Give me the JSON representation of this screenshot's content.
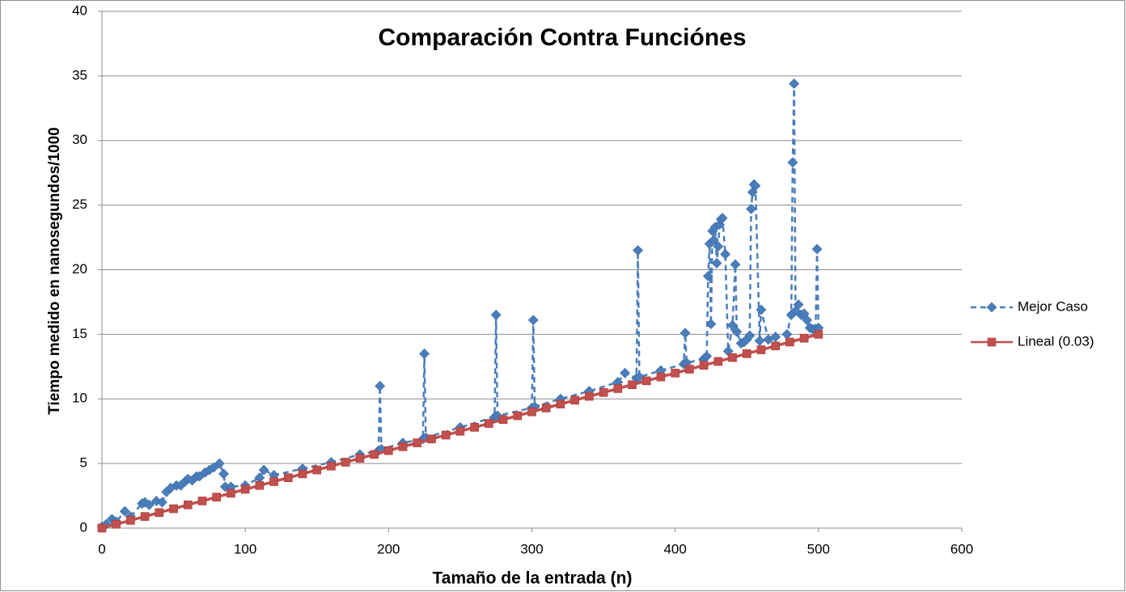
{
  "chart_data": {
    "type": "line",
    "title": "Comparación Contra Funciónes",
    "xlabel": "Tamaño de la entrada (n)",
    "ylabel": "Tiempo medido en nanosegundos/1000",
    "xlim": [
      0,
      600
    ],
    "xticks": [
      0,
      100,
      200,
      300,
      400,
      500,
      600
    ],
    "ylim": [
      0,
      40
    ],
    "yticks": [
      0,
      5,
      10,
      15,
      20,
      25,
      30,
      35,
      40
    ],
    "grid": true,
    "legend": "right",
    "series": [
      {
        "name": "Mejor Caso",
        "color": "#4a7ebb",
        "marker": "diamond",
        "dashed": true,
        "x": [
          0,
          3,
          7,
          10,
          16,
          20,
          28,
          30,
          33,
          38,
          42,
          45,
          48,
          52,
          55,
          58,
          60,
          63,
          66,
          68,
          72,
          75,
          78,
          82,
          85,
          86,
          90,
          100,
          110,
          113,
          120,
          140,
          160,
          180,
          193,
          194,
          195,
          210,
          224,
          225,
          226,
          250,
          274,
          275,
          276,
          300,
          301,
          302,
          320,
          340,
          360,
          365,
          373,
          374,
          375,
          390,
          406,
          407,
          408,
          420,
          422,
          423,
          424,
          425,
          426,
          427,
          428,
          429,
          430,
          431,
          432,
          433,
          435,
          437,
          440,
          442,
          443,
          446,
          448,
          450,
          452,
          453,
          454,
          455,
          456,
          459,
          460,
          465,
          470,
          478,
          481,
          482,
          483,
          484,
          486,
          488,
          490,
          492,
          494,
          496,
          498,
          499,
          500
        ],
        "values": [
          0.1,
          0.3,
          0.7,
          0.5,
          1.3,
          0.9,
          1.9,
          2.0,
          1.8,
          2.1,
          2.0,
          2.8,
          3.1,
          3.3,
          3.3,
          3.6,
          3.8,
          3.7,
          4.0,
          4.0,
          4.3,
          4.5,
          4.7,
          5.0,
          4.2,
          3.2,
          3.2,
          3.3,
          3.9,
          4.5,
          4.1,
          4.6,
          5.1,
          5.7,
          6.0,
          11.0,
          6.1,
          6.6,
          6.9,
          13.5,
          7.0,
          7.8,
          8.6,
          16.5,
          8.7,
          9.3,
          16.1,
          9.4,
          10.0,
          10.6,
          11.3,
          12.0,
          11.6,
          21.5,
          11.7,
          12.2,
          12.7,
          15.1,
          12.8,
          13.1,
          13.3,
          19.5,
          22.0,
          15.8,
          23.0,
          22.3,
          23.3,
          20.5,
          21.8,
          23.5,
          23.9,
          24.0,
          21.2,
          13.7,
          15.7,
          20.4,
          15.2,
          14.3,
          14.4,
          14.6,
          14.9,
          24.7,
          26.0,
          26.6,
          26.5,
          14.5,
          16.9,
          14.6,
          14.8,
          15.0,
          16.5,
          28.3,
          34.4,
          16.8,
          17.3,
          16.5,
          16.6,
          16.1,
          15.5,
          15.4,
          15.4,
          21.6,
          15.5
        ]
      },
      {
        "name": "Lineal (0.03)",
        "color": "#c0504d",
        "marker": "square",
        "dashed": false,
        "x": [
          0,
          10,
          20,
          30,
          40,
          50,
          60,
          70,
          80,
          90,
          100,
          110,
          120,
          130,
          140,
          150,
          160,
          170,
          180,
          190,
          200,
          210,
          220,
          230,
          240,
          250,
          260,
          270,
          280,
          290,
          300,
          310,
          320,
          330,
          340,
          350,
          360,
          370,
          380,
          390,
          400,
          410,
          420,
          430,
          440,
          450,
          460,
          470,
          480,
          490,
          500
        ],
        "values": [
          0,
          0.3,
          0.6,
          0.9,
          1.2,
          1.5,
          1.8,
          2.1,
          2.4,
          2.7,
          3,
          3.3,
          3.6,
          3.9,
          4.2,
          4.5,
          4.8,
          5.1,
          5.4,
          5.7,
          6,
          6.3,
          6.6,
          6.9,
          7.2,
          7.5,
          7.8,
          8.1,
          8.4,
          8.7,
          9,
          9.3,
          9.6,
          9.9,
          10.2,
          10.5,
          10.8,
          11.1,
          11.4,
          11.7,
          12,
          12.3,
          12.6,
          12.9,
          13.2,
          13.5,
          13.8,
          14.1,
          14.4,
          14.7,
          15
        ]
      }
    ]
  }
}
